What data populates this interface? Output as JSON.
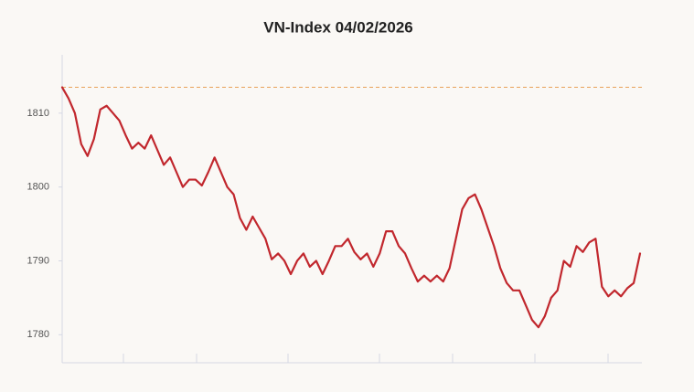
{
  "chart_data": {
    "type": "line",
    "title": "VN-Index 04/02/2026",
    "values": [
      1813.5,
      1812,
      1810,
      1805.8,
      1804.2,
      1806.5,
      1810.5,
      1811,
      1810,
      1809,
      1807,
      1805.2,
      1806,
      1805.2,
      1807,
      1805,
      1803,
      1804,
      1802,
      1800,
      1801,
      1801,
      1800.2,
      1802,
      1804,
      1802,
      1800,
      1799,
      1795.8,
      1794.2,
      1796,
      1794.5,
      1793,
      1790.2,
      1791,
      1790,
      1788.2,
      1790,
      1791,
      1789.2,
      1790,
      1788.2,
      1790,
      1792,
      1792,
      1793,
      1791.2,
      1790.2,
      1791,
      1789.2,
      1791,
      1794,
      1794,
      1792,
      1791,
      1789,
      1787.2,
      1788,
      1787.2,
      1788,
      1787.2,
      1789,
      1793,
      1797,
      1798.5,
      1799,
      1797,
      1794.5,
      1792,
      1789,
      1787,
      1786,
      1786,
      1784,
      1782,
      1781,
      1782.5,
      1785,
      1786,
      1790,
      1789.2,
      1792,
      1791.2,
      1792.5,
      1793,
      1786.5,
      1785.2,
      1786,
      1785.2,
      1786.3,
      1787,
      1791
    ],
    "color": "#c1272d",
    "reference_value": 1813.5,
    "reference_color": "#e8a25a",
    "ylim": [
      1776.2,
      1817.9
    ],
    "yticks": [
      1780,
      1790,
      1800,
      1810
    ],
    "grid": false
  }
}
